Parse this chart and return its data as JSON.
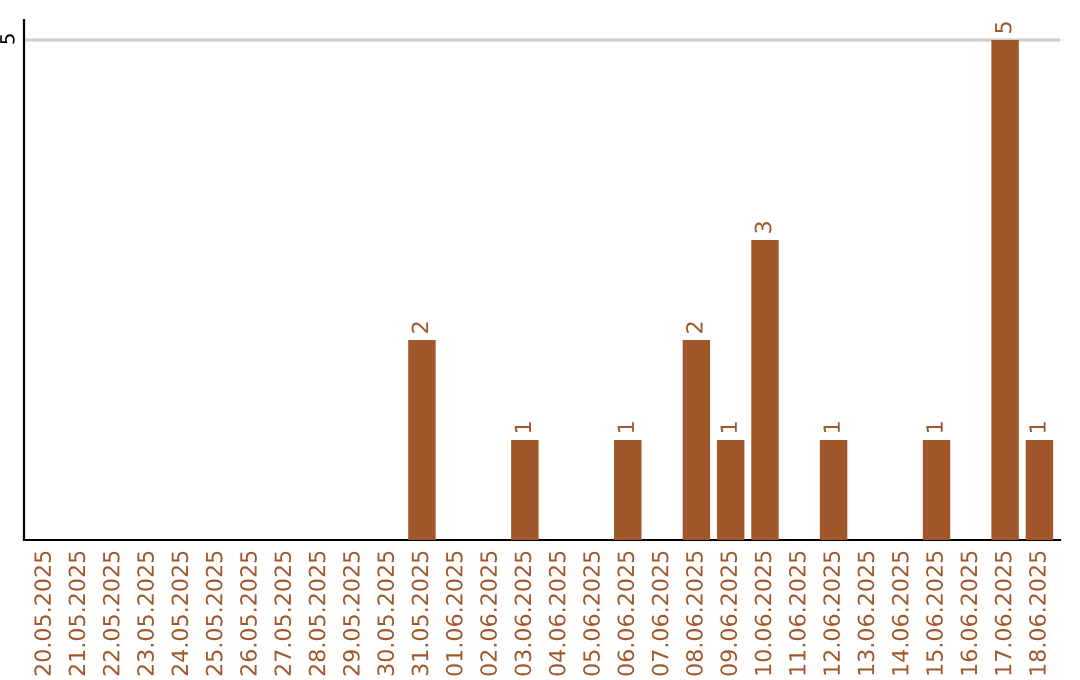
{
  "chart_data": {
    "type": "bar",
    "categories": [
      "20.05.2025",
      "21.05.2025",
      "22.05.2025",
      "23.05.2025",
      "24.05.2025",
      "25.05.2025",
      "26.05.2025",
      "27.05.2025",
      "28.05.2025",
      "29.05.2025",
      "30.05.2025",
      "31.05.2025",
      "01.06.2025",
      "02.06.2025",
      "03.06.2025",
      "04.06.2025",
      "05.06.2025",
      "06.06.2025",
      "07.06.2025",
      "08.06.2025",
      "09.06.2025",
      "10.06.2025",
      "11.06.2025",
      "12.06.2025",
      "13.06.2025",
      "14.06.2025",
      "15.06.2025",
      "16.06.2025",
      "17.06.2025",
      "18.06.2025"
    ],
    "values": [
      0,
      0,
      0,
      0,
      0,
      0,
      0,
      0,
      0,
      0,
      0,
      2,
      0,
      0,
      1,
      0,
      0,
      1,
      0,
      2,
      1,
      3,
      0,
      1,
      0,
      0,
      1,
      0,
      5,
      1
    ],
    "value_labels": [
      null,
      null,
      null,
      null,
      null,
      null,
      null,
      null,
      null,
      null,
      null,
      "2",
      null,
      null,
      "1",
      null,
      null,
      "1",
      null,
      "2",
      "1",
      "3",
      null,
      "1",
      null,
      null,
      "1",
      null,
      "5",
      "1"
    ],
    "color": "#a0572a",
    "ylim": [
      0,
      5.2
    ],
    "yticks": [
      5
    ],
    "grid": "y"
  }
}
